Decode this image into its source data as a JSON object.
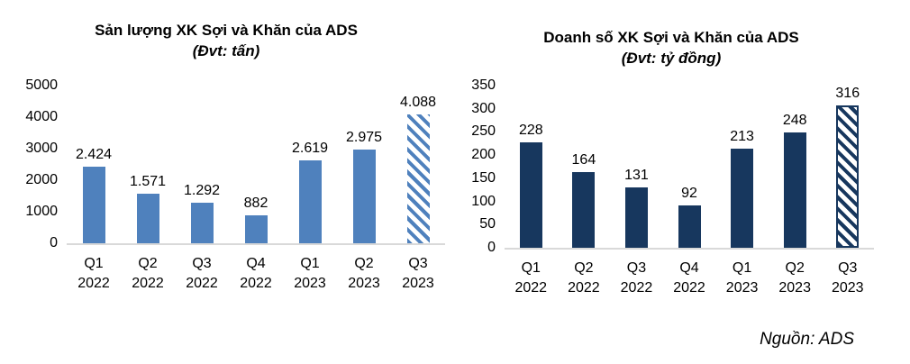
{
  "source_note": "Nguồn: ADS",
  "chart_data": [
    {
      "type": "bar",
      "title": "Sản lượng XK Sợi và Khăn của ADS",
      "subtitle": "(Đvt: tấn)",
      "categories": [
        "Q1 2022",
        "Q2 2022",
        "Q3 2022",
        "Q4 2022",
        "Q1 2023",
        "Q2 2023",
        "Q3 2023"
      ],
      "values": [
        2424,
        1571,
        1292,
        882,
        2619,
        2975,
        4088
      ],
      "value_labels": [
        "2.424",
        "1.571",
        "1.292",
        "882",
        "2.619",
        "2.975",
        "4.088"
      ],
      "yticks": [
        0,
        1000,
        2000,
        3000,
        4000,
        5000
      ],
      "ylim": [
        0,
        5000
      ],
      "xlabel": "",
      "ylabel": "",
      "grid": false,
      "legend": false,
      "bar_color": "#4F81BD",
      "baseline_color": "#D9D9D9",
      "last_bar_hatched": true,
      "hatched_bar_border": false
    },
    {
      "type": "bar",
      "title": "Doanh số XK Sợi và Khăn của ADS",
      "subtitle": "(Đvt: tỷ đồng)",
      "categories": [
        "Q1 2022",
        "Q2 2022",
        "Q3 2022",
        "Q4 2022",
        "Q1 2023",
        "Q2 2023",
        "Q3 2023"
      ],
      "values": [
        228,
        164,
        131,
        92,
        213,
        248,
        316
      ],
      "value_labels": [
        "228",
        "164",
        "131",
        "92",
        "213",
        "248",
        "316"
      ],
      "yticks": [
        0,
        50,
        100,
        150,
        200,
        250,
        300,
        350
      ],
      "ylim": [
        0,
        350
      ],
      "xlabel": "",
      "ylabel": "",
      "grid": false,
      "legend": false,
      "bar_color": "#17375E",
      "baseline_color": "#D9D9D9",
      "last_bar_hatched": true,
      "hatched_bar_border": true
    }
  ]
}
